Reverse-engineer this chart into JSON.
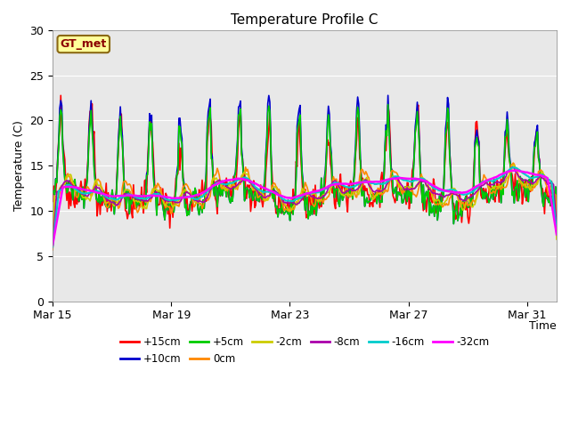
{
  "title": "Temperature Profile C",
  "xlabel": "Time",
  "ylabel": "Temperature (C)",
  "ylim": [
    0,
    30
  ],
  "yticks": [
    0,
    5,
    10,
    15,
    20,
    25,
    30
  ],
  "x_tick_labels": [
    "Mar 15",
    "Mar 19",
    "Mar 23",
    "Mar 27",
    "Mar 31"
  ],
  "annotation_text": "GT_met",
  "annotation_color": "#8B0000",
  "annotation_bg": "#FFFF99",
  "annotation_edge": "#8B6914",
  "plot_bg_color": "#E8E8E8",
  "series": [
    {
      "label": "+15cm",
      "color": "#FF0000",
      "lw": 1.2
    },
    {
      "label": "+10cm",
      "color": "#0000CD",
      "lw": 1.2
    },
    {
      "label": "+5cm",
      "color": "#00CC00",
      "lw": 1.2
    },
    {
      "label": "0cm",
      "color": "#FF8800",
      "lw": 1.2
    },
    {
      "label": "-2cm",
      "color": "#CCCC00",
      "lw": 1.2
    },
    {
      "label": "-8cm",
      "color": "#AA00AA",
      "lw": 1.2
    },
    {
      "label": "-16cm",
      "color": "#00CCCC",
      "lw": 1.5
    },
    {
      "label": "-32cm",
      "color": "#FF00FF",
      "lw": 1.8
    }
  ],
  "n_points": 500,
  "figsize": [
    6.4,
    4.8
  ],
  "dpi": 100
}
